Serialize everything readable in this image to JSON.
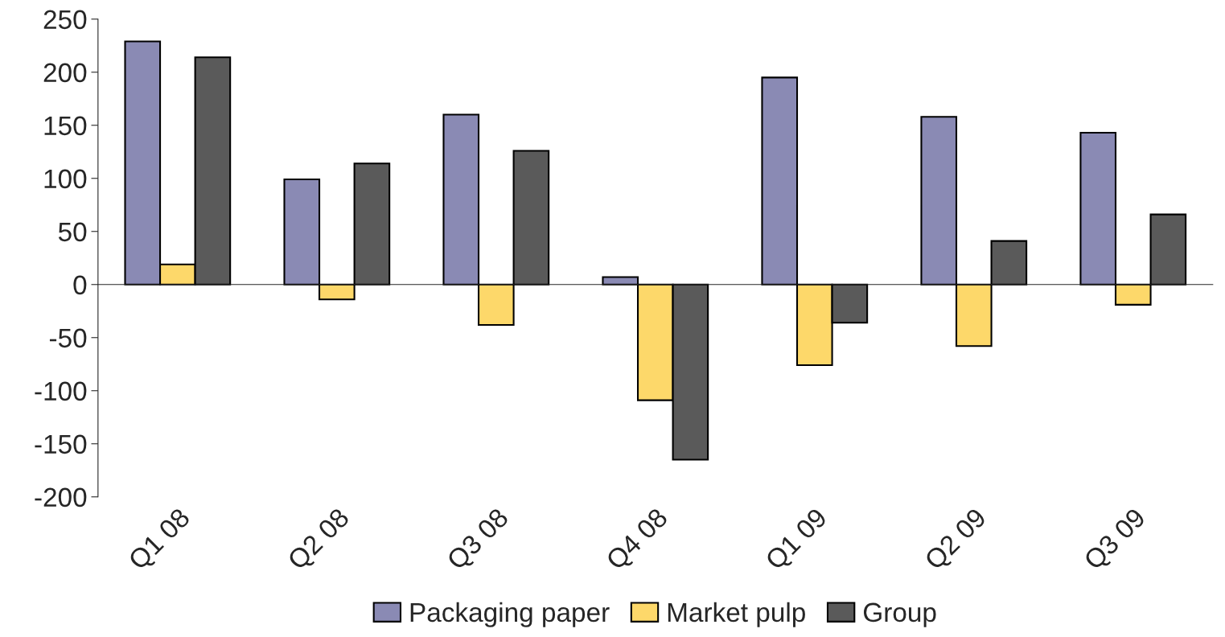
{
  "chart_data": {
    "type": "bar",
    "categories": [
      "Q1 08",
      "Q2 08",
      "Q3 08",
      "Q4 08",
      "Q1 09",
      "Q2 09",
      "Q3 09"
    ],
    "series": [
      {
        "name": "Packaging paper",
        "color": "#8a8ab4",
        "values": [
          229,
          99,
          160,
          7,
          195,
          158,
          143
        ]
      },
      {
        "name": "Market pulp",
        "color": "#fdd86a",
        "values": [
          19,
          -14,
          -38,
          -109,
          -76,
          -58,
          -19
        ]
      },
      {
        "name": "Group",
        "color": "#5a5a5a",
        "values": [
          214,
          114,
          126,
          -165,
          -36,
          41,
          66
        ]
      }
    ],
    "ylim": [
      -200,
      250
    ],
    "yticks": [
      -200,
      -150,
      -100,
      -50,
      0,
      50,
      100,
      150,
      200,
      250
    ],
    "legend": "bottom"
  }
}
